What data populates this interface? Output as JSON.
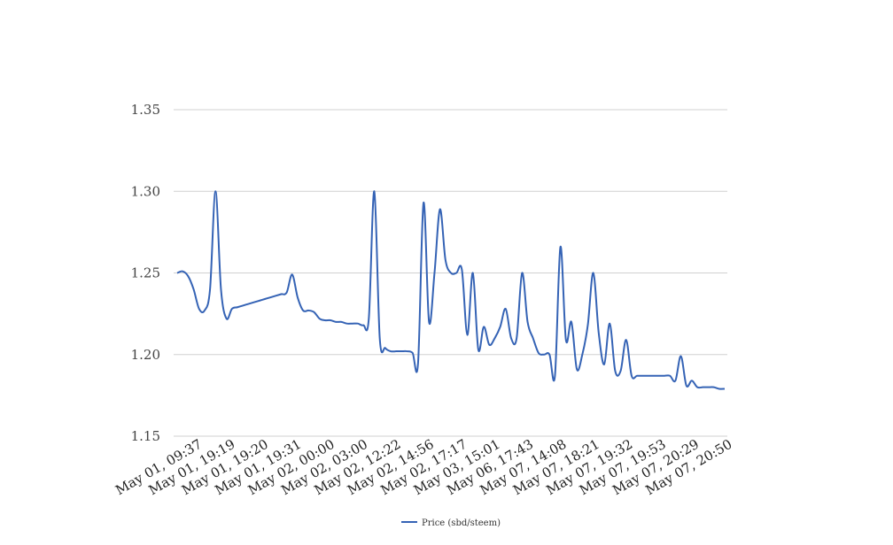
{
  "chart_data": {
    "type": "line",
    "title": "",
    "xlabel": "",
    "ylabel": "",
    "ylim": [
      1.15,
      1.35
    ],
    "yticks": [
      "1.35",
      "1.30",
      "1.25",
      "1.20",
      "1.15"
    ],
    "ytick_values": [
      1.35,
      1.3,
      1.25,
      1.2,
      1.15
    ],
    "grid": true,
    "legend_position": "bottom",
    "xtick_labels": [
      "May 01, 09:37",
      "May 01, 19:19",
      "May 01, 19:20",
      "May 01, 19:31",
      "May 02, 00:00",
      "May 02, 03:00",
      "May 02, 12:22",
      "May 02, 14:56",
      "May 02, 17:17",
      "May 03, 15:01",
      "May 06, 17:43",
      "May 07, 14:08",
      "May 07, 18:21",
      "May 07, 19:32",
      "May 07, 19:53",
      "May 07, 20:29",
      "May 07, 20:50"
    ],
    "series": [
      {
        "name": "Price (sbd/steem)",
        "color": "#3563b5",
        "values": [
          1.25,
          1.251,
          1.248,
          1.24,
          1.228,
          1.227,
          1.24,
          1.3,
          1.24,
          1.222,
          1.228,
          1.229,
          1.23,
          1.231,
          1.232,
          1.233,
          1.234,
          1.235,
          1.236,
          1.237,
          1.238,
          1.249,
          1.235,
          1.227,
          1.227,
          1.226,
          1.222,
          1.221,
          1.221,
          1.22,
          1.22,
          1.219,
          1.219,
          1.219,
          1.218,
          1.222,
          1.3,
          1.21,
          1.204,
          1.202,
          1.202,
          1.202,
          1.202,
          1.201,
          1.195,
          1.293,
          1.22,
          1.25,
          1.289,
          1.258,
          1.25,
          1.25,
          1.252,
          1.212,
          1.25,
          1.203,
          1.217,
          1.206,
          1.21,
          1.217,
          1.228,
          1.21,
          1.21,
          1.25,
          1.22,
          1.21,
          1.201,
          1.2,
          1.2,
          1.187,
          1.266,
          1.209,
          1.22,
          1.191,
          1.2,
          1.218,
          1.25,
          1.213,
          1.194,
          1.219,
          1.19,
          1.19,
          1.209,
          1.187,
          1.187,
          1.187,
          1.187,
          1.187,
          1.187,
          1.187,
          1.187,
          1.184,
          1.199,
          1.181,
          1.184,
          1.18,
          1.18,
          1.18,
          1.18,
          1.179,
          1.179
        ]
      }
    ]
  }
}
